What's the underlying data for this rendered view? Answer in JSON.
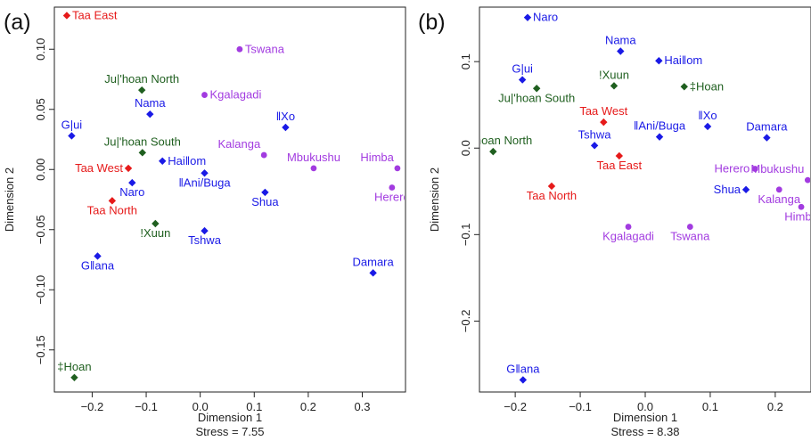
{
  "colors": {
    "khoe": "#1a1ae6",
    "kx": "#1f5f1f",
    "tuu": "#e61a1a",
    "bantu": "#a23be0",
    "axis": "#222222"
  },
  "chart_data": [
    {
      "type": "scatter",
      "panel_label": "(a)",
      "xlabel": "Dimension 1",
      "ylabel": "Dimension 2",
      "stress_label": "Stress = 7.55",
      "xlim": [
        -0.27,
        0.38
      ],
      "ylim": [
        -0.185,
        0.135
      ],
      "xticks": [
        -0.2,
        -0.1,
        0.0,
        0.1,
        0.2,
        0.3
      ],
      "xtick_labels": [
        "−0.2",
        "−0.1",
        "0.0",
        "0.1",
        "0.2",
        "0.3"
      ],
      "yticks": [
        -0.15,
        -0.1,
        -0.05,
        0.0,
        0.05,
        0.1
      ],
      "ytick_labels": [
        "−0.15",
        "−0.10",
        "−0.05",
        "0.00",
        "0.05",
        "0.10"
      ],
      "points": [
        {
          "label": "Taa East",
          "x": -0.247,
          "y": 0.128,
          "group": "tuu",
          "marker": "diamond",
          "anchor": "right"
        },
        {
          "label": "Tswana",
          "x": 0.073,
          "y": 0.1,
          "group": "bantu",
          "marker": "circle",
          "anchor": "right"
        },
        {
          "label": "Ju|'hoan North",
          "x": -0.108,
          "y": 0.066,
          "group": "kx",
          "marker": "diamond",
          "anchor": "above"
        },
        {
          "label": "Kgalagadi",
          "x": 0.008,
          "y": 0.062,
          "group": "bantu",
          "marker": "circle",
          "anchor": "right"
        },
        {
          "label": "Nama",
          "x": -0.093,
          "y": 0.046,
          "group": "khoe",
          "marker": "diamond",
          "anchor": "above"
        },
        {
          "label": "G|ui",
          "x": -0.238,
          "y": 0.028,
          "group": "khoe",
          "marker": "diamond",
          "anchor": "above"
        },
        {
          "label": "‖Xo",
          "x": 0.158,
          "y": 0.035,
          "group": "khoe",
          "marker": "diamond",
          "anchor": "above"
        },
        {
          "label": "Ju|'hoan South",
          "x": -0.107,
          "y": 0.014,
          "group": "kx",
          "marker": "diamond",
          "anchor": "above"
        },
        {
          "label": "Kalanga",
          "x": 0.118,
          "y": 0.012,
          "group": "bantu",
          "marker": "circle",
          "anchor": "aboveleft"
        },
        {
          "label": "Mbukushu",
          "x": 0.21,
          "y": 0.001,
          "group": "bantu",
          "marker": "circle",
          "anchor": "above"
        },
        {
          "label": "Himba",
          "x": 0.365,
          "y": 0.001,
          "group": "bantu",
          "marker": "circle",
          "anchor": "aboveleft"
        },
        {
          "label": "Hai‖om",
          "x": -0.07,
          "y": 0.007,
          "group": "khoe",
          "marker": "diamond",
          "anchor": "right"
        },
        {
          "label": "Taa West",
          "x": -0.133,
          "y": 0.001,
          "group": "tuu",
          "marker": "diamond",
          "anchor": "left"
        },
        {
          "label": "‖Ani/Buga",
          "x": 0.008,
          "y": -0.003,
          "group": "khoe",
          "marker": "diamond",
          "anchor": "below"
        },
        {
          "label": "Naro",
          "x": -0.126,
          "y": -0.011,
          "group": "khoe",
          "marker": "diamond",
          "anchor": "below"
        },
        {
          "label": "Herero",
          "x": 0.355,
          "y": -0.015,
          "group": "bantu",
          "marker": "circle",
          "anchor": "below"
        },
        {
          "label": "Shua",
          "x": 0.12,
          "y": -0.019,
          "group": "khoe",
          "marker": "diamond",
          "anchor": "below"
        },
        {
          "label": "Taa North",
          "x": -0.163,
          "y": -0.026,
          "group": "tuu",
          "marker": "diamond",
          "anchor": "below"
        },
        {
          "label": "!Xuun",
          "x": -0.083,
          "y": -0.045,
          "group": "kx",
          "marker": "diamond",
          "anchor": "below"
        },
        {
          "label": "Tshwa",
          "x": 0.008,
          "y": -0.051,
          "group": "khoe",
          "marker": "diamond",
          "anchor": "below"
        },
        {
          "label": "G‖ana",
          "x": -0.19,
          "y": -0.072,
          "group": "khoe",
          "marker": "diamond",
          "anchor": "below"
        },
        {
          "label": "Damara",
          "x": 0.32,
          "y": -0.086,
          "group": "khoe",
          "marker": "diamond",
          "anchor": "above"
        },
        {
          "label": "‡Hoan",
          "x": -0.233,
          "y": -0.173,
          "group": "kx",
          "marker": "diamond",
          "anchor": "above"
        }
      ]
    },
    {
      "type": "scatter",
      "panel_label": "(b)",
      "xlabel": "Dimension 1",
      "ylabel": "Dimension 2",
      "stress_label": "Stress = 8.38",
      "xlim": [
        -0.255,
        0.255
      ],
      "ylim": [
        -0.282,
        0.163
      ],
      "xticks": [
        -0.2,
        -0.1,
        0.0,
        0.1,
        0.2
      ],
      "xtick_labels": [
        "−0.2",
        "−0.1",
        "0.0",
        "0.1",
        "0.2"
      ],
      "yticks": [
        -0.2,
        -0.1,
        0.0,
        0.1
      ],
      "ytick_labels": [
        "−0.2",
        "−0.1",
        "0.0",
        "0.1"
      ],
      "points": [
        {
          "label": "Naro",
          "x": -0.181,
          "y": 0.151,
          "group": "khoe",
          "marker": "diamond",
          "anchor": "right"
        },
        {
          "label": "Nama",
          "x": -0.038,
          "y": 0.112,
          "group": "khoe",
          "marker": "diamond",
          "anchor": "above"
        },
        {
          "label": "Hai‖om",
          "x": 0.021,
          "y": 0.101,
          "group": "khoe",
          "marker": "diamond",
          "anchor": "right"
        },
        {
          "label": "G|ui",
          "x": -0.189,
          "y": 0.079,
          "group": "khoe",
          "marker": "diamond",
          "anchor": "above"
        },
        {
          "label": "!Xuun",
          "x": -0.048,
          "y": 0.072,
          "group": "kx",
          "marker": "diamond",
          "anchor": "above"
        },
        {
          "label": "‡Hoan",
          "x": 0.06,
          "y": 0.071,
          "group": "kx",
          "marker": "diamond",
          "anchor": "right"
        },
        {
          "label": "Ju|'hoan South",
          "x": -0.167,
          "y": 0.069,
          "group": "kx",
          "marker": "diamond",
          "anchor": "below"
        },
        {
          "label": "Taa West",
          "x": -0.064,
          "y": 0.03,
          "group": "tuu",
          "marker": "diamond",
          "anchor": "above"
        },
        {
          "label": "‖Xo",
          "x": 0.096,
          "y": 0.025,
          "group": "khoe",
          "marker": "diamond",
          "anchor": "above"
        },
        {
          "label": "‖Ani/Buga",
          "x": 0.022,
          "y": 0.013,
          "group": "khoe",
          "marker": "diamond",
          "anchor": "above"
        },
        {
          "label": "Damara",
          "x": 0.187,
          "y": 0.012,
          "group": "khoe",
          "marker": "diamond",
          "anchor": "above"
        },
        {
          "label": "Tshwa",
          "x": -0.078,
          "y": 0.003,
          "group": "khoe",
          "marker": "diamond",
          "anchor": "above"
        },
        {
          "label": "Ju|'hoan North",
          "x": -0.234,
          "y": -0.004,
          "group": "kx",
          "marker": "diamond",
          "anchor": "aboveright"
        },
        {
          "label": "Taa East",
          "x": -0.04,
          "y": -0.009,
          "group": "tuu",
          "marker": "diamond",
          "anchor": "below"
        },
        {
          "label": "Herero",
          "x": 0.169,
          "y": -0.024,
          "group": "bantu",
          "marker": "circle",
          "anchor": "left"
        },
        {
          "label": "Mbukushu",
          "x": 0.25,
          "y": -0.037,
          "group": "bantu",
          "marker": "circle",
          "anchor": "aboveleft"
        },
        {
          "label": "Taa North",
          "x": -0.144,
          "y": -0.044,
          "group": "tuu",
          "marker": "diamond",
          "anchor": "below"
        },
        {
          "label": "Shua",
          "x": 0.155,
          "y": -0.048,
          "group": "khoe",
          "marker": "diamond",
          "anchor": "left"
        },
        {
          "label": "Kalanga",
          "x": 0.206,
          "y": -0.048,
          "group": "bantu",
          "marker": "circle",
          "anchor": "below"
        },
        {
          "label": "Himba",
          "x": 0.24,
          "y": -0.068,
          "group": "bantu",
          "marker": "circle",
          "anchor": "below"
        },
        {
          "label": "Kgalagadi",
          "x": -0.026,
          "y": -0.091,
          "group": "bantu",
          "marker": "circle",
          "anchor": "below"
        },
        {
          "label": "Tswana",
          "x": 0.069,
          "y": -0.091,
          "group": "bantu",
          "marker": "circle",
          "anchor": "below"
        },
        {
          "label": "G‖ana",
          "x": -0.188,
          "y": -0.268,
          "group": "khoe",
          "marker": "diamond",
          "anchor": "above"
        }
      ]
    }
  ]
}
